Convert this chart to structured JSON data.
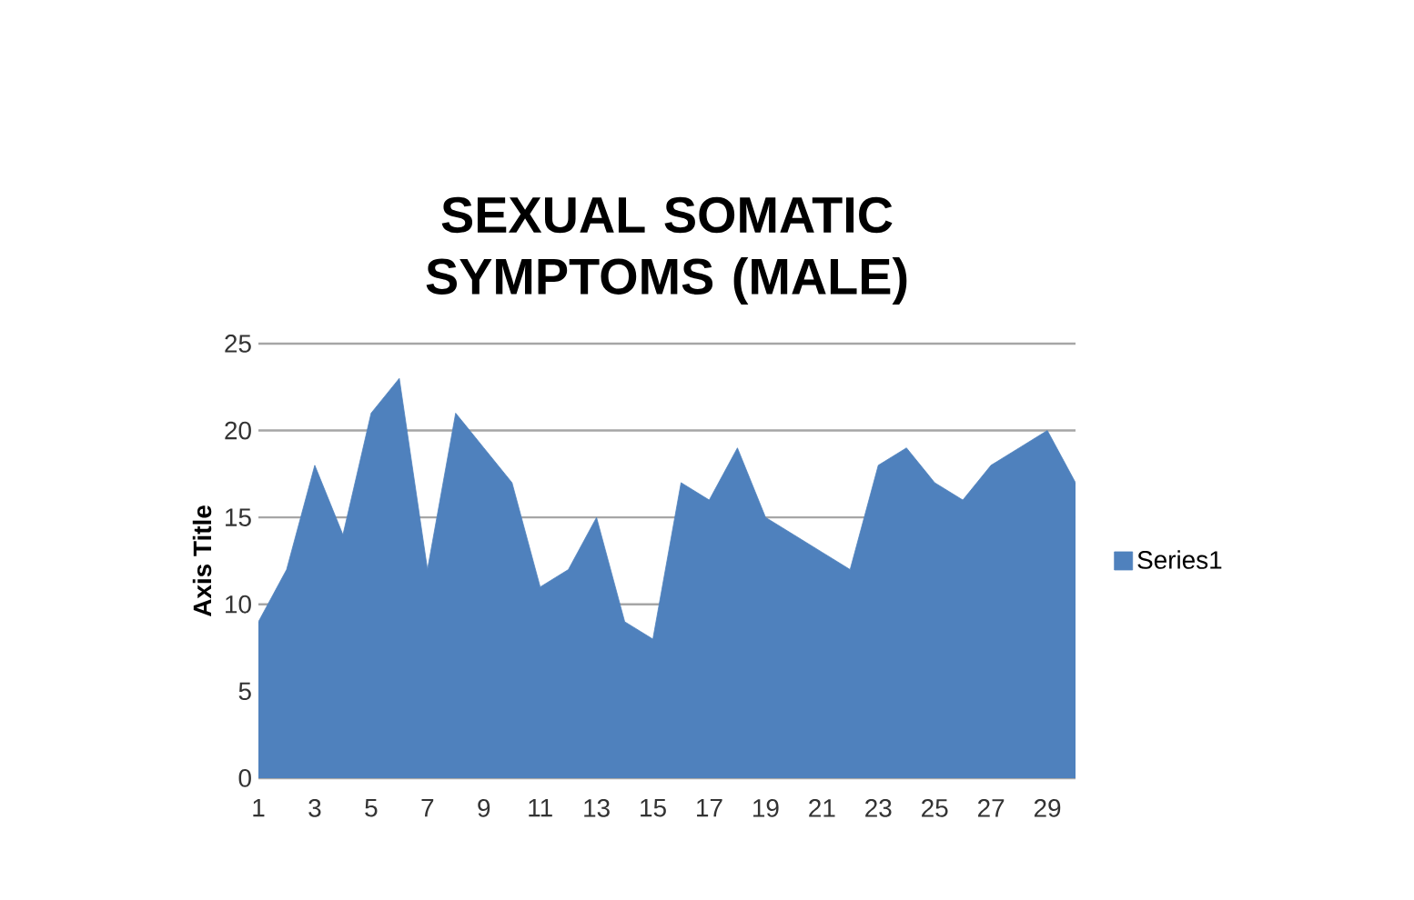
{
  "chart_data": {
    "type": "area",
    "title": "SEXUAL SOMATIC SYMPTOMS (MALE)",
    "ylabel": "Axis Title",
    "categories": [
      "1",
      null,
      "3",
      null,
      "5",
      null,
      "7",
      null,
      "9",
      null,
      "11",
      null,
      "13",
      null,
      "15",
      null,
      "17",
      null,
      "19",
      null,
      "21",
      null,
      "23",
      null,
      "25",
      null,
      "27",
      null,
      "29",
      null
    ],
    "series": [
      {
        "name": "Series1",
        "color": "#4f81bd",
        "values": [
          9,
          12,
          18,
          14,
          21,
          23,
          12,
          21,
          19,
          17,
          11,
          12,
          15,
          9,
          8,
          17,
          16,
          19,
          15,
          14,
          13,
          12,
          18,
          19,
          17,
          16,
          18,
          19,
          20,
          17
        ]
      }
    ],
    "ylim": [
      0,
      25
    ],
    "yticks": [
      0,
      5,
      10,
      15,
      20,
      25
    ],
    "grid": "y",
    "legend": "right"
  }
}
